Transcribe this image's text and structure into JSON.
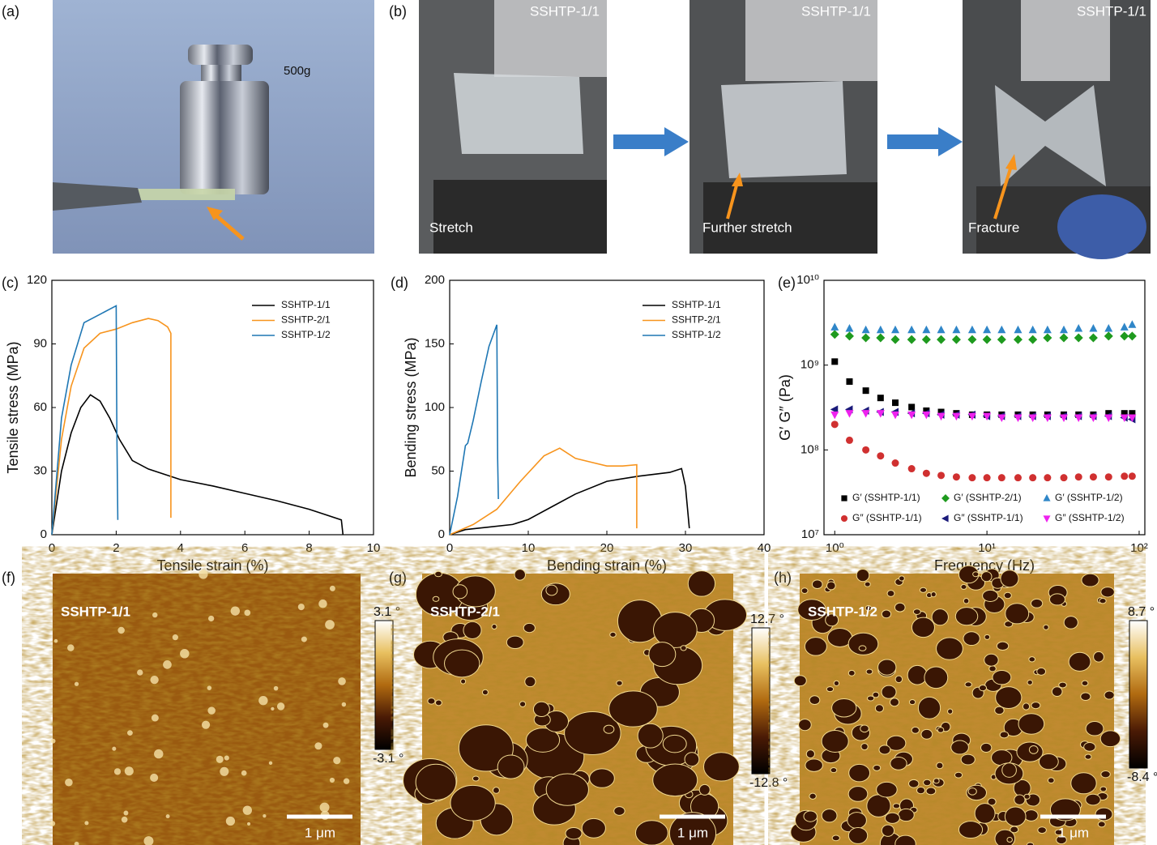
{
  "panels": {
    "a": {
      "label": "(a)",
      "weight": "500g"
    },
    "b": {
      "label": "(b)",
      "photos": [
        {
          "sample": "SSHTP-1/1",
          "caption": "Stretch"
        },
        {
          "sample": "SSHTP-1/1",
          "caption": "Further stretch"
        },
        {
          "sample": "SSHTP-1/1",
          "caption": "Fracture"
        }
      ]
    }
  },
  "chart_data": [
    {
      "type": "line",
      "panel": "(c)",
      "x_label": "Tensile strain (%)",
      "y_label": "Tensile stress (MPa)",
      "xlim": [
        0,
        10
      ],
      "xticks": [
        0,
        2,
        4,
        6,
        8,
        10
      ],
      "ylim": [
        0,
        120
      ],
      "yticks": [
        0,
        30,
        60,
        90,
        120
      ],
      "legend": "upper right",
      "series": [
        {
          "name": "SSHTP-1/1",
          "color": "#000000",
          "x": [
            0,
            0.3,
            0.6,
            0.9,
            1.2,
            1.5,
            1.8,
            2.1,
            2.5,
            3,
            4,
            5,
            6,
            7,
            8,
            9,
            9.05
          ],
          "values": [
            0,
            30,
            48,
            60,
            66,
            63,
            55,
            45,
            35,
            31,
            26,
            23,
            19.5,
            16,
            12,
            7,
            0
          ]
        },
        {
          "name": "SSHTP-2/1",
          "color": "#f7941d",
          "x": [
            0,
            0.3,
            0.6,
            1,
            1.5,
            2,
            2.5,
            3,
            3.3,
            3.6,
            3.7,
            3.7
          ],
          "values": [
            0,
            45,
            70,
            88,
            95,
            97,
            100,
            102,
            101,
            98,
            95,
            8
          ]
        },
        {
          "name": "SSHTP-1/2",
          "color": "#1f77b4",
          "x": [
            0,
            0.3,
            0.6,
            1,
            1.5,
            2,
            2.02,
            2.05
          ],
          "values": [
            0,
            55,
            80,
            100,
            104,
            108,
            50,
            7
          ]
        }
      ]
    },
    {
      "type": "line",
      "panel": "(d)",
      "x_label": "Bending strain (%)",
      "y_label": "Bending stress (MPa)",
      "xlim": [
        0,
        40
      ],
      "xticks": [
        0,
        10,
        20,
        30,
        40
      ],
      "ylim": [
        0,
        200
      ],
      "yticks": [
        0,
        50,
        100,
        150,
        200
      ],
      "legend": "upper right",
      "series": [
        {
          "name": "SSHTP-1/1",
          "color": "#000000",
          "x": [
            0,
            2,
            5,
            8,
            10,
            13,
            16,
            20,
            24,
            28,
            29.5,
            30,
            30.5
          ],
          "values": [
            0,
            4,
            6,
            8,
            12,
            22,
            32,
            42,
            46,
            49,
            52,
            38,
            5
          ]
        },
        {
          "name": "SSHTP-2/1",
          "color": "#f7941d",
          "x": [
            0,
            3,
            6,
            9,
            12,
            14,
            16,
            18,
            20,
            22,
            23.8,
            23.8
          ],
          "values": [
            0,
            8,
            20,
            42,
            62,
            68,
            60,
            57,
            54,
            54,
            55,
            5
          ]
        },
        {
          "name": "SSHTP-1/2",
          "color": "#1f77b4",
          "x": [
            0,
            1,
            2,
            2.3,
            3,
            4,
            5,
            6,
            6.1,
            6.2
          ],
          "values": [
            0,
            30,
            70,
            72,
            90,
            120,
            148,
            165,
            60,
            28
          ]
        }
      ]
    },
    {
      "type": "scatter",
      "panel": "(e)",
      "x_label": "Frequency (Hz)",
      "y_label": "G′ G″ (Pa)",
      "xscale": "log",
      "yscale": "log",
      "xlim": [
        0.85,
        109
      ],
      "ylim": [
        10000000.0,
        10000000000.0
      ],
      "xticks": [
        {
          "value": 1,
          "label": "10⁰"
        },
        {
          "value": 10,
          "label": "10¹"
        },
        {
          "value": 100,
          "label": "10²"
        }
      ],
      "yticks": [
        {
          "value": 10000000.0,
          "label": "10⁷"
        },
        {
          "value": 100000000.0,
          "label": "10⁸"
        },
        {
          "value": 1000000000.0,
          "label": "10⁹"
        },
        {
          "value": 10000000000.0,
          "label": "10¹⁰"
        }
      ],
      "legend": "lower center",
      "x": [
        1,
        1.25,
        1.6,
        2,
        2.5,
        3.2,
        4,
        5,
        6.3,
        8,
        10,
        12.5,
        16,
        20,
        25,
        32,
        40,
        50,
        63,
        80,
        90
      ],
      "series": [
        {
          "name": "G′ (SSHTP-1/1)",
          "color": "#000000",
          "marker": "square",
          "values": [
            1100000000.0,
            640000000.0,
            500000000.0,
            410000000.0,
            360000000.0,
            320000000.0,
            290000000.0,
            280000000.0,
            270000000.0,
            260000000.0,
            260000000.0,
            260000000.0,
            260000000.0,
            260000000.0,
            260000000.0,
            260000000.0,
            260000000.0,
            260000000.0,
            270000000.0,
            270000000.0,
            270000000.0
          ]
        },
        {
          "name": "G′ (SSHTP-2/1)",
          "color": "#1e9a1e",
          "marker": "diamond",
          "values": [
            2300000000.0,
            2200000000.0,
            2100000000.0,
            2100000000.0,
            2000000000.0,
            2000000000.0,
            2000000000.0,
            2000000000.0,
            2000000000.0,
            2000000000.0,
            2000000000.0,
            2000000000.0,
            2000000000.0,
            2000000000.0,
            2100000000.0,
            2100000000.0,
            2100000000.0,
            2100000000.0,
            2200000000.0,
            2200000000.0,
            2200000000.0
          ]
        },
        {
          "name": "G′ (SSHTP-1/2)",
          "color": "#2f86c8",
          "marker": "triangle-up",
          "values": [
            2800000000.0,
            2700000000.0,
            2600000000.0,
            2600000000.0,
            2600000000.0,
            2600000000.0,
            2600000000.0,
            2600000000.0,
            2600000000.0,
            2600000000.0,
            2600000000.0,
            2600000000.0,
            2600000000.0,
            2600000000.0,
            2600000000.0,
            2600000000.0,
            2700000000.0,
            2700000000.0,
            2700000000.0,
            2800000000.0,
            3000000000.0
          ]
        },
        {
          "name": "G″ (SSHTP-1/1)",
          "color": "#d03030",
          "marker": "circle",
          "values": [
            200000000.0,
            130000000.0,
            100000000.0,
            85000000.0,
            70000000.0,
            60000000.0,
            53000000.0,
            50000000.0,
            48000000.0,
            47000000.0,
            47000000.0,
            47000000.0,
            47000000.0,
            47000000.0,
            47000000.0,
            47000000.0,
            48000000.0,
            48000000.0,
            48000000.0,
            49000000.0,
            49000000.0
          ]
        },
        {
          "name": "G″ (SSHTP-1/1)",
          "color": "#1a1a7a",
          "marker": "triangle-left",
          "values": [
            300000000.0,
            300000000.0,
            290000000.0,
            280000000.0,
            280000000.0,
            270000000.0,
            270000000.0,
            260000000.0,
            260000000.0,
            260000000.0,
            250000000.0,
            250000000.0,
            250000000.0,
            250000000.0,
            250000000.0,
            250000000.0,
            250000000.0,
            250000000.0,
            250000000.0,
            240000000.0,
            230000000.0
          ]
        },
        {
          "name": "G″ (SSHTP-1/2)",
          "color": "#ee22ee",
          "marker": "triangle-down",
          "values": [
            260000000.0,
            270000000.0,
            270000000.0,
            270000000.0,
            260000000.0,
            260000000.0,
            260000000.0,
            250000000.0,
            250000000.0,
            250000000.0,
            250000000.0,
            240000000.0,
            240000000.0,
            240000000.0,
            240000000.0,
            240000000.0,
            240000000.0,
            240000000.0,
            240000000.0,
            240000000.0,
            240000000.0
          ]
        }
      ]
    }
  ],
  "afm": [
    {
      "label": "(f)",
      "sample": "SSHTP-1/1",
      "max": "3.1 °",
      "min": "-3.1 °",
      "scale": "1 μm"
    },
    {
      "label": "(g)",
      "sample": "SSHTP-2/1",
      "max": "12.7 °",
      "min": "-12.8 °",
      "scale": "1 μm"
    },
    {
      "label": "(h)",
      "sample": "SSHTP-1/2",
      "max": "8.7 °",
      "min": "-8.4 °",
      "scale": "1 μm"
    }
  ]
}
